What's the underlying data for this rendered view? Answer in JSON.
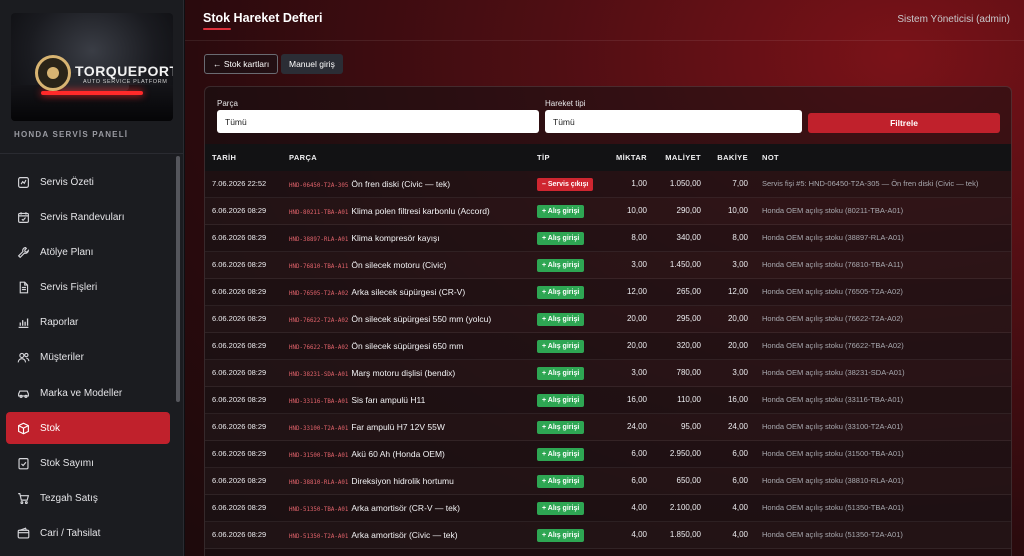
{
  "sidebar": {
    "logo": {
      "title": "TORQUEPORT",
      "subtitle": "AUTO SERVICE PLATFORM"
    },
    "panel_label": "HONDA SERVİS PANELİ",
    "items": [
      {
        "label": "Servis Özeti",
        "icon": "gauge-icon"
      },
      {
        "label": "Servis Randevuları",
        "icon": "calendar-icon"
      },
      {
        "label": "Atölye Planı",
        "icon": "wrench-icon"
      },
      {
        "label": "Servis Fişleri",
        "icon": "document-icon"
      },
      {
        "label": "Raporlar",
        "icon": "bar-chart-icon"
      },
      {
        "label": "Müşteriler",
        "icon": "users-icon"
      },
      {
        "label": "Marka ve Modeller",
        "icon": "car-icon"
      },
      {
        "label": "Stok",
        "icon": "box-icon",
        "active": true
      },
      {
        "label": "Stok Sayımı",
        "icon": "checklist-icon"
      },
      {
        "label": "Tezgah Satış",
        "icon": "cart-icon"
      },
      {
        "label": "Cari / Tahsilat",
        "icon": "wallet-icon"
      }
    ]
  },
  "header": {
    "title": "Stok Hareket Defteri",
    "user": "Sistem Yöneticisi (admin)"
  },
  "toolbar": {
    "back_label": "← Stok kartları",
    "manual_label": "Manuel giriş"
  },
  "filters": {
    "part_label": "Parça",
    "part_value": "Tümü",
    "type_label": "Hareket tipi",
    "type_value": "Tümü",
    "filter_button": "Filtrele"
  },
  "table": {
    "columns": [
      "TARİH",
      "PARÇA",
      "TİP",
      "MİKTAR",
      "MALİYET",
      "BAKİYE",
      "NOT"
    ],
    "rows": [
      {
        "date": "7.06.2026 22:52",
        "code": "HND-06450-T2A-305",
        "name": "Ön fren diski (Civic — tek)",
        "type": "– Servis çıkışı",
        "kind": "out",
        "qty": "1,00",
        "cost": "1.050,00",
        "balance": "7,00",
        "note": "Servis fişi #5: HND-06450-T2A-305 — Ön fren diski (Civic — tek)"
      },
      {
        "date": "6.06.2026 08:29",
        "code": "HND-80211-TBA-A01",
        "name": "Klima polen filtresi karbonlu (Accord)",
        "type": "+ Alış girişi",
        "kind": "in",
        "qty": "10,00",
        "cost": "290,00",
        "balance": "10,00",
        "note": "Honda OEM açılış stoku (80211-TBA-A01)"
      },
      {
        "date": "6.06.2026 08:29",
        "code": "HND-38897-RLA-A01",
        "name": "Klima kompresör kayışı",
        "type": "+ Alış girişi",
        "kind": "in",
        "qty": "8,00",
        "cost": "340,00",
        "balance": "8,00",
        "note": "Honda OEM açılış stoku (38897-RLA-A01)"
      },
      {
        "date": "6.06.2026 08:29",
        "code": "HND-76810-TBA-A11",
        "name": "Ön silecek motoru (Civic)",
        "type": "+ Alış girişi",
        "kind": "in",
        "qty": "3,00",
        "cost": "1.450,00",
        "balance": "3,00",
        "note": "Honda OEM açılış stoku (76810-TBA-A11)"
      },
      {
        "date": "6.06.2026 08:29",
        "code": "HND-76505-T2A-A02",
        "name": "Arka silecek süpürgesi (CR-V)",
        "type": "+ Alış girişi",
        "kind": "in",
        "qty": "12,00",
        "cost": "265,00",
        "balance": "12,00",
        "note": "Honda OEM açılış stoku (76505-T2A-A02)"
      },
      {
        "date": "6.06.2026 08:29",
        "code": "HND-76622-T2A-A02",
        "name": "Ön silecek süpürgesi 550 mm (yolcu)",
        "type": "+ Alış girişi",
        "kind": "in",
        "qty": "20,00",
        "cost": "295,00",
        "balance": "20,00",
        "note": "Honda OEM açılış stoku (76622-T2A-A02)"
      },
      {
        "date": "6.06.2026 08:29",
        "code": "HND-76622-TBA-A02",
        "name": "Ön silecek süpürgesi 650 mm",
        "type": "+ Alış girişi",
        "kind": "in",
        "qty": "20,00",
        "cost": "320,00",
        "balance": "20,00",
        "note": "Honda OEM açılış stoku (76622-TBA-A02)"
      },
      {
        "date": "6.06.2026 08:29",
        "code": "HND-38231-SDA-A01",
        "name": "Marş motoru dişlisi (bendix)",
        "type": "+ Alış girişi",
        "kind": "in",
        "qty": "3,00",
        "cost": "780,00",
        "balance": "3,00",
        "note": "Honda OEM açılış stoku (38231-SDA-A01)"
      },
      {
        "date": "6.06.2026 08:29",
        "code": "HND-33116-TBA-A01",
        "name": "Sis farı ampulü H11",
        "type": "+ Alış girişi",
        "kind": "in",
        "qty": "16,00",
        "cost": "110,00",
        "balance": "16,00",
        "note": "Honda OEM açılış stoku (33116-TBA-A01)"
      },
      {
        "date": "6.06.2026 08:29",
        "code": "HND-33100-T2A-A01",
        "name": "Far ampulü H7 12V 55W",
        "type": "+ Alış girişi",
        "kind": "in",
        "qty": "24,00",
        "cost": "95,00",
        "balance": "24,00",
        "note": "Honda OEM açılış stoku (33100-T2A-A01)"
      },
      {
        "date": "6.06.2026 08:29",
        "code": "HND-31500-TBA-A01",
        "name": "Akü 60 Ah (Honda OEM)",
        "type": "+ Alış girişi",
        "kind": "in",
        "qty": "6,00",
        "cost": "2.950,00",
        "balance": "6,00",
        "note": "Honda OEM açılış stoku (31500-TBA-A01)"
      },
      {
        "date": "6.06.2026 08:29",
        "code": "HND-38810-RLA-A01",
        "name": "Direksiyon hidrolik hortumu",
        "type": "+ Alış girişi",
        "kind": "in",
        "qty": "6,00",
        "cost": "650,00",
        "balance": "6,00",
        "note": "Honda OEM açılış stoku (38810-RLA-A01)"
      },
      {
        "date": "6.06.2026 08:29",
        "code": "HND-51350-TBA-A01",
        "name": "Arka amortisör (CR-V — tek)",
        "type": "+ Alış girişi",
        "kind": "in",
        "qty": "4,00",
        "cost": "2.100,00",
        "balance": "4,00",
        "note": "Honda OEM açılış stoku (51350-TBA-A01)"
      },
      {
        "date": "6.06.2026 08:29",
        "code": "HND-51350-T2A-A01",
        "name": "Arka amortisör (Civic — tek)",
        "type": "+ Alış girişi",
        "kind": "in",
        "qty": "4,00",
        "cost": "1.850,00",
        "balance": "4,00",
        "note": "Honda OEM açılış stoku (51350-T2A-A01)"
      }
    ]
  }
}
